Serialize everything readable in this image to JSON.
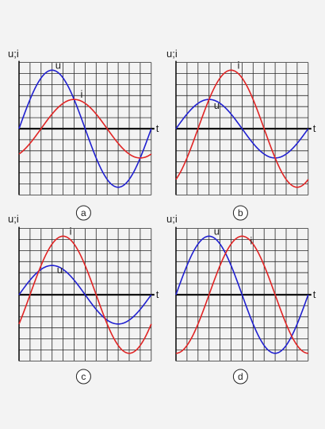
{
  "axis_labels": {
    "y": "u;i",
    "x": "t"
  },
  "colors": {
    "u": "#2020d0",
    "i": "#e02424",
    "grid": "#2a2a2a",
    "axis": "#111111",
    "background": "#f3f3f3"
  },
  "chart_data": [
    {
      "type": "line",
      "panel_label": "a",
      "ylabel": "u;i",
      "xlabel": "t",
      "series": [
        {
          "name": "u",
          "amplitude": 1.0,
          "phase_deg": 0,
          "period_cells": 12
        },
        {
          "name": "i",
          "amplitude": 0.5,
          "phase_deg": -60,
          "period_cells": 12
        }
      ]
    },
    {
      "type": "line",
      "panel_label": "b",
      "ylabel": "u;i",
      "xlabel": "t",
      "series": [
        {
          "name": "u",
          "amplitude": 0.5,
          "phase_deg": 0,
          "period_cells": 12
        },
        {
          "name": "i",
          "amplitude": 1.0,
          "phase_deg": -60,
          "period_cells": 12
        }
      ]
    },
    {
      "type": "line",
      "panel_label": "c",
      "ylabel": "u;i",
      "xlabel": "t",
      "series": [
        {
          "name": "u",
          "amplitude": 0.5,
          "phase_deg": 0,
          "period_cells": 12
        },
        {
          "name": "i",
          "amplitude": 1.0,
          "phase_deg": -30,
          "period_cells": 12
        }
      ]
    },
    {
      "type": "line",
      "panel_label": "d",
      "ylabel": "u;i",
      "xlabel": "t",
      "series": [
        {
          "name": "u",
          "amplitude": 1.0,
          "phase_deg": 0,
          "period_cells": 12
        },
        {
          "name": "i",
          "amplitude": 1.0,
          "phase_deg": -90,
          "period_cells": 12
        }
      ]
    }
  ]
}
